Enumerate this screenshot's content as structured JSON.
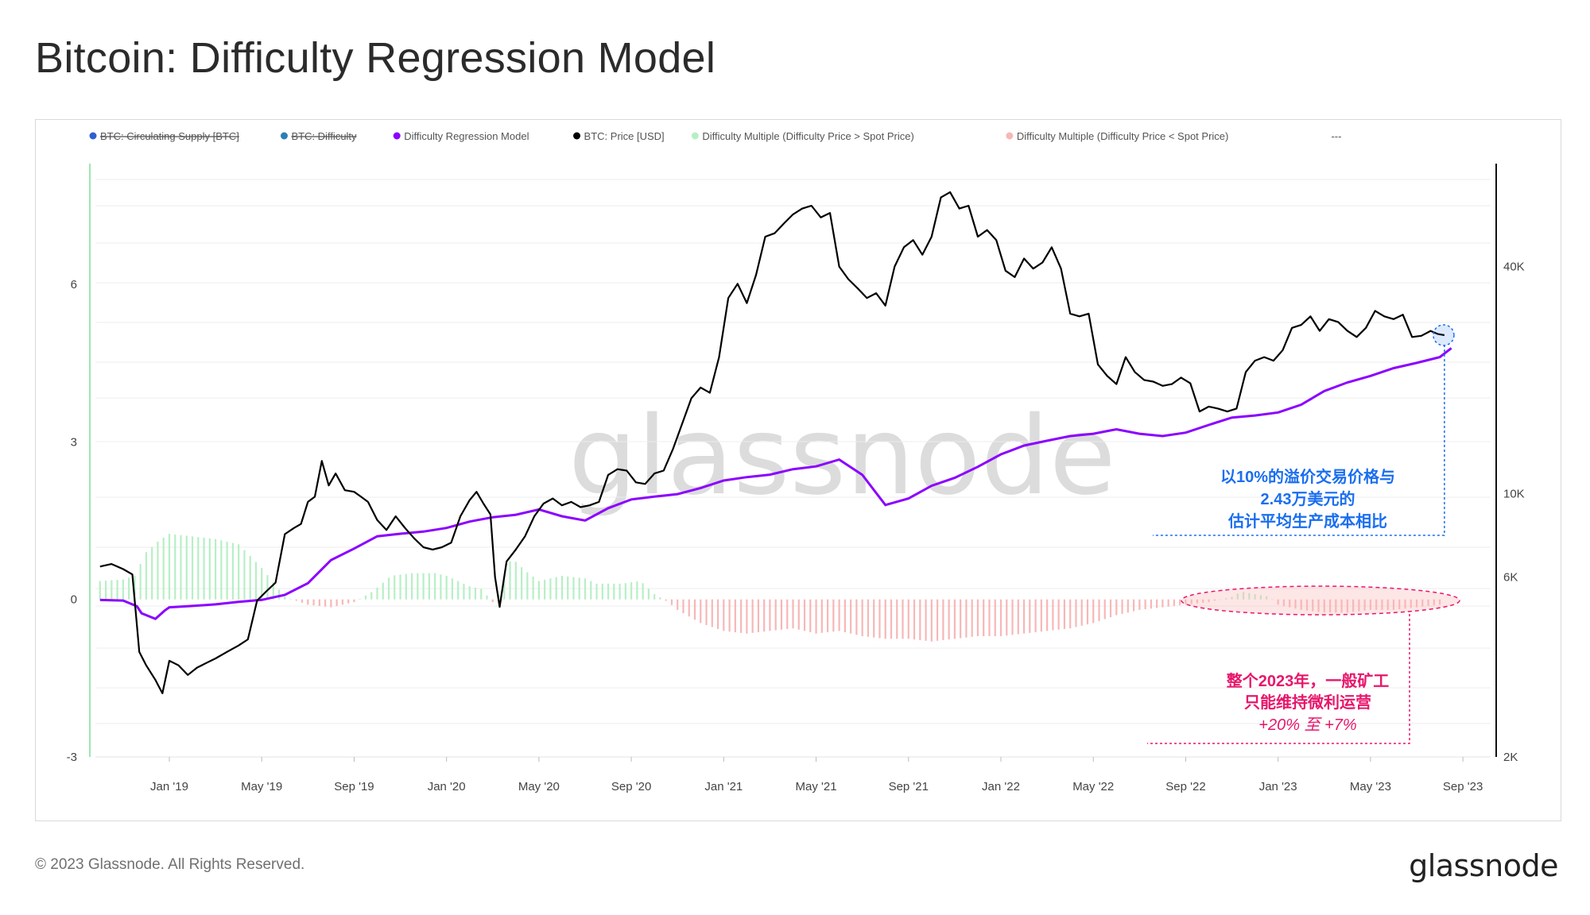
{
  "page": {
    "title": "Bitcoin: Difficulty Regression Model",
    "footer": "© 2023 Glassnode. All Rights Reserved.",
    "logo": "glassnode",
    "watermark": "glassnode"
  },
  "legend": [
    {
      "label": "BTC: Circulating Supply [BTC]",
      "color": "#2f5fd0",
      "disabled": true
    },
    {
      "label": "BTC: Difficulty",
      "color": "#2a7fb5",
      "disabled": true
    },
    {
      "label": "Difficulty Regression Model",
      "color": "#8b00ff",
      "disabled": false
    },
    {
      "label": "BTC: Price [USD]",
      "color": "#000000",
      "disabled": false
    },
    {
      "label": "Difficulty Multiple (Difficulty Price > Spot Price)",
      "color": "#b7efc5",
      "disabled": false
    },
    {
      "label": "Difficulty Multiple (Difficulty Price < Spot Price)",
      "color": "#f7b7b7",
      "disabled": false
    },
    {
      "label": "---",
      "color": "#999999",
      "disabled": false,
      "no_marker": true
    }
  ],
  "annotations": {
    "blue": {
      "lines": [
        "以10%的溢价交易价格与",
        "2.43万美元的",
        "估计平均生产成本相比"
      ],
      "color": "#1a6ef0"
    },
    "pink": {
      "lines": [
        "整个2023年，一般矿工",
        "只能维持微利运营",
        "+20% 至 +7%"
      ],
      "color": "#e8166b"
    }
  },
  "chart_data": {
    "type": "line",
    "x_ticks": [
      "Jan '19",
      "May '19",
      "Sep '19",
      "Jan '20",
      "May '20",
      "Sep '20",
      "Jan '21",
      "May '21",
      "Sep '21",
      "Jan '22",
      "May '22",
      "Sep '22",
      "Jan '23",
      "May '23",
      "Sep '23"
    ],
    "x_tick_months": [
      0,
      4,
      8,
      12,
      16,
      20,
      24,
      28,
      32,
      36,
      40,
      44,
      48,
      52,
      56
    ],
    "x_range_months": [
      -3.2,
      57.2
    ],
    "y_left": {
      "ticks": [
        -3,
        0,
        3,
        6
      ],
      "range": [
        -3,
        8.3
      ]
    },
    "y_right": {
      "ticks": [
        "2K",
        "6K",
        "10K",
        "40K"
      ],
      "tick_values": [
        2000,
        6000,
        10000,
        40000
      ],
      "scale": "log",
      "range": [
        2000,
        75000
      ]
    },
    "grid": true,
    "legend_position": "top",
    "series": [
      {
        "name": "BTC: Price [USD]",
        "axis": "right",
        "color": "#000000",
        "points": [
          [
            -3,
            6400
          ],
          [
            -2.5,
            6500
          ],
          [
            -2,
            6300
          ],
          [
            -1.6,
            6100
          ],
          [
            -1.3,
            3800
          ],
          [
            -1,
            3500
          ],
          [
            -0.6,
            3200
          ],
          [
            -0.3,
            2950
          ],
          [
            0,
            3600
          ],
          [
            0.4,
            3500
          ],
          [
            0.8,
            3300
          ],
          [
            1.2,
            3450
          ],
          [
            1.6,
            3550
          ],
          [
            2,
            3650
          ],
          [
            2.5,
            3800
          ],
          [
            3,
            3950
          ],
          [
            3.4,
            4100
          ],
          [
            3.8,
            5200
          ],
          [
            4.2,
            5500
          ],
          [
            4.6,
            5800
          ],
          [
            5,
            7800
          ],
          [
            5.4,
            8100
          ],
          [
            5.7,
            8300
          ],
          [
            6,
            9500
          ],
          [
            6.3,
            9800
          ],
          [
            6.6,
            12200
          ],
          [
            6.9,
            10500
          ],
          [
            7.2,
            11300
          ],
          [
            7.6,
            10200
          ],
          [
            8,
            10100
          ],
          [
            8.3,
            9800
          ],
          [
            8.6,
            9500
          ],
          [
            9,
            8500
          ],
          [
            9.4,
            8000
          ],
          [
            9.8,
            8700
          ],
          [
            10.2,
            8100
          ],
          [
            10.6,
            7600
          ],
          [
            11,
            7200
          ],
          [
            11.4,
            7100
          ],
          [
            11.8,
            7200
          ],
          [
            12.2,
            7400
          ],
          [
            12.6,
            8700
          ],
          [
            13,
            9600
          ],
          [
            13.3,
            10100
          ],
          [
            13.6,
            9400
          ],
          [
            13.9,
            8800
          ],
          [
            14.1,
            6000
          ],
          [
            14.3,
            5000
          ],
          [
            14.6,
            6600
          ],
          [
            15,
            7100
          ],
          [
            15.4,
            7700
          ],
          [
            15.8,
            8700
          ],
          [
            16.2,
            9400
          ],
          [
            16.6,
            9700
          ],
          [
            17,
            9300
          ],
          [
            17.4,
            9500
          ],
          [
            17.8,
            9200
          ],
          [
            18.2,
            9300
          ],
          [
            18.6,
            9500
          ],
          [
            19,
            11200
          ],
          [
            19.4,
            11600
          ],
          [
            19.8,
            11500
          ],
          [
            20.2,
            10700
          ],
          [
            20.6,
            10600
          ],
          [
            21,
            11300
          ],
          [
            21.4,
            11500
          ],
          [
            21.8,
            13100
          ],
          [
            22.2,
            15300
          ],
          [
            22.6,
            17900
          ],
          [
            23,
            19100
          ],
          [
            23.4,
            18500
          ],
          [
            23.8,
            23000
          ],
          [
            24.2,
            33000
          ],
          [
            24.6,
            36000
          ],
          [
            25,
            32000
          ],
          [
            25.4,
            38000
          ],
          [
            25.8,
            48000
          ],
          [
            26.2,
            49000
          ],
          [
            26.6,
            52000
          ],
          [
            27,
            55000
          ],
          [
            27.4,
            57000
          ],
          [
            27.8,
            58000
          ],
          [
            28.2,
            54000
          ],
          [
            28.6,
            55500
          ],
          [
            29,
            40000
          ],
          [
            29.4,
            37000
          ],
          [
            29.8,
            35000
          ],
          [
            30.2,
            33000
          ],
          [
            30.6,
            34000
          ],
          [
            31,
            31500
          ],
          [
            31.4,
            40000
          ],
          [
            31.8,
            45000
          ],
          [
            32.2,
            47000
          ],
          [
            32.6,
            43000
          ],
          [
            33,
            48000
          ],
          [
            33.4,
            61000
          ],
          [
            33.8,
            63000
          ],
          [
            34.2,
            57000
          ],
          [
            34.6,
            58000
          ],
          [
            35,
            48000
          ],
          [
            35.4,
            50000
          ],
          [
            35.8,
            47000
          ],
          [
            36.2,
            39000
          ],
          [
            36.6,
            37500
          ],
          [
            37,
            42000
          ],
          [
            37.4,
            39500
          ],
          [
            37.8,
            41000
          ],
          [
            38.2,
            45000
          ],
          [
            38.6,
            39500
          ],
          [
            39,
            30000
          ],
          [
            39.4,
            29500
          ],
          [
            39.8,
            30000
          ],
          [
            40.2,
            22000
          ],
          [
            40.6,
            20500
          ],
          [
            41,
            19500
          ],
          [
            41.4,
            23000
          ],
          [
            41.8,
            21000
          ],
          [
            42.2,
            20000
          ],
          [
            42.6,
            19800
          ],
          [
            43,
            19300
          ],
          [
            43.4,
            19500
          ],
          [
            43.8,
            20300
          ],
          [
            44.2,
            19600
          ],
          [
            44.6,
            16500
          ],
          [
            45,
            17000
          ],
          [
            45.4,
            16800
          ],
          [
            45.8,
            16500
          ],
          [
            46.2,
            16800
          ],
          [
            46.6,
            21000
          ],
          [
            47,
            22500
          ],
          [
            47.4,
            23000
          ],
          [
            47.8,
            22500
          ],
          [
            48.2,
            24000
          ],
          [
            48.6,
            27500
          ],
          [
            49,
            28000
          ],
          [
            49.4,
            29500
          ],
          [
            49.8,
            27000
          ],
          [
            50.2,
            29000
          ],
          [
            50.6,
            28500
          ],
          [
            51,
            27000
          ],
          [
            51.4,
            26000
          ],
          [
            51.8,
            27500
          ],
          [
            52.2,
            30500
          ],
          [
            52.6,
            29500
          ],
          [
            53,
            29000
          ],
          [
            53.4,
            29800
          ],
          [
            53.8,
            26000
          ],
          [
            54.2,
            26200
          ],
          [
            54.6,
            27000
          ],
          [
            54.9,
            26500
          ],
          [
            55.2,
            26300
          ]
        ]
      },
      {
        "name": "Difficulty Regression Model",
        "axis": "right",
        "color": "#8b00ff",
        "points": [
          [
            -3,
            5220
          ],
          [
            -2,
            5200
          ],
          [
            -1.4,
            5020
          ],
          [
            -1.2,
            4810
          ],
          [
            -0.6,
            4650
          ],
          [
            -0.2,
            4890
          ],
          [
            0,
            4990
          ],
          [
            1,
            5030
          ],
          [
            2,
            5080
          ],
          [
            3,
            5160
          ],
          [
            4,
            5220
          ],
          [
            5,
            5380
          ],
          [
            6,
            5780
          ],
          [
            7,
            6660
          ],
          [
            8,
            7140
          ],
          [
            9,
            7700
          ],
          [
            10,
            7820
          ],
          [
            11,
            7920
          ],
          [
            12,
            8100
          ],
          [
            13,
            8420
          ],
          [
            14,
            8650
          ],
          [
            15,
            8780
          ],
          [
            16,
            9070
          ],
          [
            17,
            8700
          ],
          [
            18,
            8480
          ],
          [
            19,
            9140
          ],
          [
            20,
            9640
          ],
          [
            21,
            9810
          ],
          [
            22,
            9960
          ],
          [
            23,
            10340
          ],
          [
            24,
            10820
          ],
          [
            25,
            11050
          ],
          [
            26,
            11220
          ],
          [
            27,
            11600
          ],
          [
            28,
            11800
          ],
          [
            29,
            12300
          ],
          [
            30,
            11200
          ],
          [
            31,
            9320
          ],
          [
            32,
            9700
          ],
          [
            33,
            10480
          ],
          [
            34,
            11000
          ],
          [
            35,
            11770
          ],
          [
            36,
            12700
          ],
          [
            37,
            13400
          ],
          [
            38,
            13800
          ],
          [
            39,
            14200
          ],
          [
            40,
            14400
          ],
          [
            41,
            14800
          ],
          [
            42,
            14400
          ],
          [
            43,
            14200
          ],
          [
            44,
            14500
          ],
          [
            45,
            15200
          ],
          [
            46,
            15900
          ],
          [
            47,
            16100
          ],
          [
            48,
            16400
          ],
          [
            49,
            17200
          ],
          [
            50,
            18700
          ],
          [
            51,
            19700
          ],
          [
            52,
            20500
          ],
          [
            53,
            21500
          ],
          [
            54,
            22200
          ],
          [
            55,
            23000
          ],
          [
            55.5,
            24300
          ]
        ]
      },
      {
        "name": "Difficulty Multiple",
        "axis": "left",
        "kind": "bars",
        "color_above": "#b7efc5",
        "color_below": "#f7b7b7",
        "points": [
          [
            -3,
            0.35
          ],
          [
            -2,
            0.38
          ],
          [
            -1.5,
            0.45
          ],
          [
            -1,
            0.9
          ],
          [
            -0.5,
            1.1
          ],
          [
            0,
            1.25
          ],
          [
            1,
            1.2
          ],
          [
            2,
            1.15
          ],
          [
            3,
            1.05
          ],
          [
            4,
            0.6
          ],
          [
            5,
            0.05
          ],
          [
            6,
            -0.1
          ],
          [
            7,
            -0.15
          ],
          [
            8,
            -0.05
          ],
          [
            8.8,
            0.15
          ],
          [
            9.6,
            0.45
          ],
          [
            10.5,
            0.5
          ],
          [
            11.5,
            0.5
          ],
          [
            12,
            0.45
          ],
          [
            12.5,
            0.35
          ],
          [
            13,
            0.25
          ],
          [
            13.5,
            0.2
          ],
          [
            14,
            -0.05
          ],
          [
            14.4,
            0.2
          ],
          [
            14.8,
            0.8
          ],
          [
            15.4,
            0.55
          ],
          [
            16,
            0.35
          ],
          [
            17,
            0.45
          ],
          [
            18,
            0.4
          ],
          [
            18.5,
            0.3
          ],
          [
            19,
            0.3
          ],
          [
            19.6,
            0.3
          ],
          [
            20.4,
            0.35
          ],
          [
            21,
            0.1
          ],
          [
            21.6,
            -0.05
          ],
          [
            22,
            -0.2
          ],
          [
            23,
            -0.45
          ],
          [
            24,
            -0.6
          ],
          [
            25,
            -0.65
          ],
          [
            26,
            -0.6
          ],
          [
            27,
            -0.55
          ],
          [
            28,
            -0.65
          ],
          [
            29,
            -0.6
          ],
          [
            30,
            -0.7
          ],
          [
            31,
            -0.75
          ],
          [
            32,
            -0.75
          ],
          [
            33,
            -0.8
          ],
          [
            34,
            -0.75
          ],
          [
            35,
            -0.7
          ],
          [
            36,
            -0.7
          ],
          [
            37,
            -0.65
          ],
          [
            38,
            -0.6
          ],
          [
            39,
            -0.55
          ],
          [
            40,
            -0.45
          ],
          [
            41,
            -0.3
          ],
          [
            42,
            -0.2
          ],
          [
            43,
            -0.15
          ],
          [
            44,
            -0.1
          ],
          [
            45,
            -0.05
          ],
          [
            46,
            0.05
          ],
          [
            46.4,
            0.15
          ],
          [
            47,
            0.1
          ],
          [
            47.6,
            0.05
          ],
          [
            48,
            -0.1
          ],
          [
            49,
            -0.2
          ],
          [
            50,
            -0.25
          ],
          [
            51,
            -0.25
          ],
          [
            52,
            -0.2
          ],
          [
            53,
            -0.2
          ],
          [
            54,
            -0.15
          ],
          [
            55,
            -0.1
          ]
        ]
      }
    ]
  }
}
